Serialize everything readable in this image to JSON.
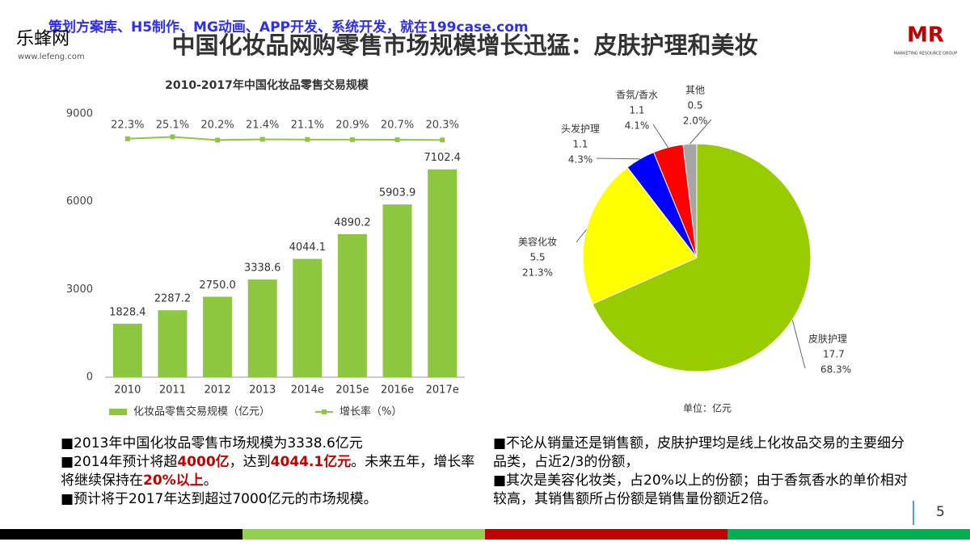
{
  "header": {
    "watermark": "策划方案库、H5制作、MG动画、APP开发、系统开发，就在199case.com",
    "logo": "乐蜂网",
    "logo_url": "www.lefeng.com",
    "title": "中国化妆品网购零售市场规模增长迅猛：皮肤护理和美妆",
    "brand": "MR",
    "brand_sub": "MARKETING RESOURCE GROUP"
  },
  "chart_data": [
    {
      "type": "bar",
      "title": "2010-2017年中国化妆品零售交易规模",
      "categories": [
        "2010",
        "2011",
        "2012",
        "2013",
        "2014e",
        "2015e",
        "2016e",
        "2017e"
      ],
      "series": [
        {
          "name": "化妆品零售交易规模（亿元）",
          "color": "#8dc63f",
          "values": [
            1828.4,
            2287.2,
            2750.0,
            3338.6,
            4044.1,
            4890.2,
            5903.9,
            7102.4
          ],
          "value_labels": [
            "1828.4",
            "2287.2",
            "2750.0",
            "3338.6",
            "4044.1",
            "4890.2",
            "5903.9",
            "7102.4"
          ]
        },
        {
          "name": "增长率（%）",
          "type": "line",
          "axis": "y2",
          "color": "#8dc63f",
          "values": [
            22.3,
            25.1,
            20.2,
            21.4,
            21.1,
            20.9,
            20.7,
            20.3
          ],
          "value_labels": [
            "22.3%",
            "25.1%",
            "20.2%",
            "21.4%",
            "21.1%",
            "20.9%",
            "20.7%",
            "20.3%"
          ]
        }
      ],
      "ylim": [
        0,
        9000
      ],
      "yticks": [
        0,
        3000,
        6000,
        9000
      ],
      "y2lim": [
        -340,
        60
      ],
      "grid": false,
      "legend": "bottom"
    },
    {
      "type": "pie",
      "categories": [
        "皮肤护理",
        "美容化妆",
        "头发护理",
        "香氛/香水",
        "其他"
      ],
      "values": [
        17.7,
        5.5,
        1.1,
        1.1,
        0.5
      ],
      "shares": [
        68.3,
        21.3,
        4.3,
        4.1,
        2.0
      ],
      "share_labels": [
        "68.3%",
        "21.3%",
        "4.3%",
        "4.1%",
        "2.0%"
      ],
      "colors": [
        "#99cc00",
        "#ffff00",
        "#0000ff",
        "#ff0000",
        "#a6a6a6"
      ],
      "unit": "单位：亿元"
    }
  ],
  "notes_left": [
    [
      "■2013年中国化妆品零售市场规模为3338.6亿元"
    ],
    [
      "■2014年预计将超",
      {
        "text": "4000亿",
        "color": "#c00000"
      },
      "，达到",
      {
        "text": "4044.1亿元",
        "color": "#c00000"
      },
      "。未来五年，增长率将继续保持在",
      {
        "text": "20%以上",
        "color": "#c00000"
      },
      "。"
    ],
    [
      "■预计将于2017年达到超过7000亿元的市场规模。"
    ]
  ],
  "notes_right": [
    [
      "■不论从销量还是销售额，皮肤护理均是线上化妆品交易的主要细分品类，占近2/3的份额，"
    ],
    [
      "■其次是美容化妆类，占20%以上的份额；由于香氛香水的单价相对较高，其销售额所占份额是销售量份额近2倍。"
    ]
  ],
  "page_number": "5"
}
